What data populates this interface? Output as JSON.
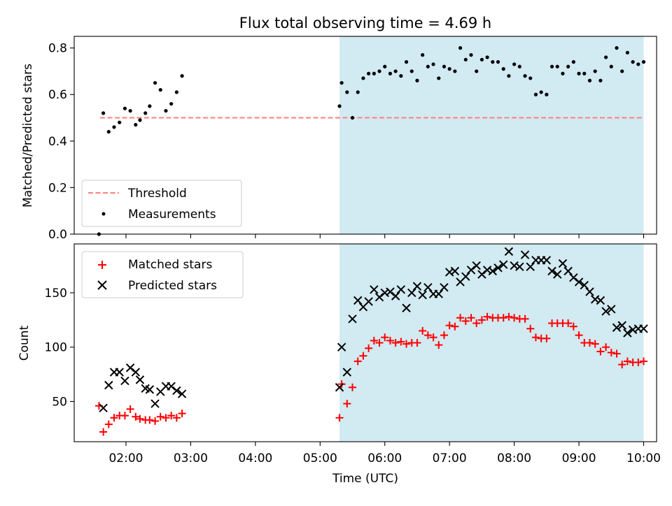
{
  "title": "Flux total observing time = 4.69 h",
  "colors": {
    "shade": "#add8e6",
    "threshold": "#ff7f7f",
    "measurement": "#000000",
    "matched": "#ff0000",
    "predicted": "#000000"
  },
  "chart_data": [
    {
      "type": "scatter",
      "ylabel": "Matched/Predicted stars",
      "ylim": [
        0,
        0.85
      ],
      "yticks": [
        "0.0",
        "0.2",
        "0.4",
        "0.6",
        "0.8"
      ],
      "xlim": [
        "01:12",
        "10:12"
      ],
      "shaded_region": [
        "05:18",
        "10:00"
      ],
      "threshold": {
        "name": "Threshold",
        "value": 0.5,
        "x_range": [
          "01:36",
          "10:00"
        ]
      },
      "legend": {
        "position": "lower-left",
        "entries": [
          "Threshold",
          "Measurements"
        ]
      },
      "series": [
        {
          "name": "Measurements",
          "points": [
            [
              "01:35",
              0.0
            ],
            [
              "01:39",
              0.52
            ],
            [
              "01:44",
              0.44
            ],
            [
              "01:49",
              0.46
            ],
            [
              "01:54",
              0.48
            ],
            [
              "01:59",
              0.54
            ],
            [
              "02:04",
              0.53
            ],
            [
              "02:09",
              0.47
            ],
            [
              "02:13",
              0.49
            ],
            [
              "02:18",
              0.52
            ],
            [
              "02:22",
              0.55
            ],
            [
              "02:27",
              0.65
            ],
            [
              "02:32",
              0.62
            ],
            [
              "02:37",
              0.53
            ],
            [
              "02:42",
              0.56
            ],
            [
              "02:47",
              0.61
            ],
            [
              "02:52",
              0.68
            ],
            [
              "05:18",
              0.55
            ],
            [
              "05:20",
              0.65
            ],
            [
              "05:25",
              0.61
            ],
            [
              "05:30",
              0.5
            ],
            [
              "05:35",
              0.61
            ],
            [
              "05:40",
              0.67
            ],
            [
              "05:45",
              0.69
            ],
            [
              "05:50",
              0.69
            ],
            [
              "05:55",
              0.7
            ],
            [
              "06:00",
              0.72
            ],
            [
              "06:05",
              0.69
            ],
            [
              "06:10",
              0.7
            ],
            [
              "06:15",
              0.68
            ],
            [
              "06:20",
              0.74
            ],
            [
              "06:25",
              0.7
            ],
            [
              "06:30",
              0.66
            ],
            [
              "06:35",
              0.77
            ],
            [
              "06:40",
              0.72
            ],
            [
              "06:45",
              0.73
            ],
            [
              "06:50",
              0.67
            ],
            [
              "06:55",
              0.72
            ],
            [
              "07:00",
              0.71
            ],
            [
              "07:05",
              0.7
            ],
            [
              "07:10",
              0.8
            ],
            [
              "07:15",
              0.75
            ],
            [
              "07:20",
              0.77
            ],
            [
              "07:25",
              0.7
            ],
            [
              "07:30",
              0.75
            ],
            [
              "07:35",
              0.76
            ],
            [
              "07:40",
              0.74
            ],
            [
              "07:45",
              0.74
            ],
            [
              "07:50",
              0.71
            ],
            [
              "07:55",
              0.68
            ],
            [
              "08:00",
              0.73
            ],
            [
              "08:05",
              0.72
            ],
            [
              "08:10",
              0.68
            ],
            [
              "08:15",
              0.67
            ],
            [
              "08:20",
              0.6
            ],
            [
              "08:25",
              0.61
            ],
            [
              "08:30",
              0.6
            ],
            [
              "08:35",
              0.72
            ],
            [
              "08:40",
              0.72
            ],
            [
              "08:45",
              0.69
            ],
            [
              "08:50",
              0.72
            ],
            [
              "08:55",
              0.74
            ],
            [
              "09:00",
              0.69
            ],
            [
              "09:05",
              0.69
            ],
            [
              "09:10",
              0.66
            ],
            [
              "09:15",
              0.7
            ],
            [
              "09:20",
              0.66
            ],
            [
              "09:25",
              0.76
            ],
            [
              "09:30",
              0.72
            ],
            [
              "09:35",
              0.8
            ],
            [
              "09:40",
              0.7
            ],
            [
              "09:45",
              0.78
            ],
            [
              "09:50",
              0.74
            ],
            [
              "09:55",
              0.73
            ],
            [
              "10:00",
              0.74
            ]
          ]
        }
      ]
    },
    {
      "type": "scatter",
      "xlabel": "Time (UTC)",
      "ylabel": "Count",
      "ylim": [
        13,
        195
      ],
      "yticks": [
        "50",
        "100",
        "150"
      ],
      "xticks": [
        "02:00",
        "03:00",
        "04:00",
        "05:00",
        "06:00",
        "07:00",
        "08:00",
        "09:00",
        "10:00"
      ],
      "xlim": [
        "01:12",
        "10:12"
      ],
      "shaded_region": [
        "05:18",
        "10:00"
      ],
      "legend": {
        "position": "upper-left",
        "entries": [
          "Matched stars",
          "Predicted stars"
        ]
      },
      "series": [
        {
          "name": "Matched stars",
          "points": [
            [
              "01:35",
              46
            ],
            [
              "01:39",
              22
            ],
            [
              "01:44",
              29
            ],
            [
              "01:49",
              35
            ],
            [
              "01:54",
              37
            ],
            [
              "01:59",
              37
            ],
            [
              "02:04",
              43
            ],
            [
              "02:09",
              36
            ],
            [
              "02:13",
              34
            ],
            [
              "02:18",
              33
            ],
            [
              "02:22",
              33
            ],
            [
              "02:27",
              32
            ],
            [
              "02:32",
              36
            ],
            [
              "02:37",
              35
            ],
            [
              "02:42",
              37
            ],
            [
              "02:47",
              35
            ],
            [
              "02:52",
              39
            ],
            [
              "05:18",
              35
            ],
            [
              "05:20",
              66
            ],
            [
              "05:25",
              48
            ],
            [
              "05:30",
              63
            ],
            [
              "05:35",
              87
            ],
            [
              "05:40",
              92
            ],
            [
              "05:45",
              99
            ],
            [
              "05:50",
              106
            ],
            [
              "05:55",
              104
            ],
            [
              "06:00",
              109
            ],
            [
              "06:05",
              106
            ],
            [
              "06:10",
              104
            ],
            [
              "06:15",
              105
            ],
            [
              "06:20",
              103
            ],
            [
              "06:25",
              104
            ],
            [
              "06:30",
              104
            ],
            [
              "06:35",
              115
            ],
            [
              "06:40",
              111
            ],
            [
              "06:45",
              109
            ],
            [
              "06:50",
              102
            ],
            [
              "06:55",
              111
            ],
            [
              "07:00",
              120
            ],
            [
              "07:05",
              119
            ],
            [
              "07:10",
              127
            ],
            [
              "07:15",
              124
            ],
            [
              "07:20",
              127
            ],
            [
              "07:25",
              122
            ],
            [
              "07:30",
              125
            ],
            [
              "07:35",
              128
            ],
            [
              "07:40",
              127
            ],
            [
              "07:45",
              127
            ],
            [
              "07:50",
              127
            ],
            [
              "07:55",
              128
            ],
            [
              "08:00",
              127
            ],
            [
              "08:05",
              126
            ],
            [
              "08:10",
              126
            ],
            [
              "08:15",
              117
            ],
            [
              "08:20",
              109
            ],
            [
              "08:25",
              108
            ],
            [
              "08:30",
              108
            ],
            [
              "08:35",
              122
            ],
            [
              "08:40",
              122
            ],
            [
              "08:45",
              122
            ],
            [
              "08:50",
              122
            ],
            [
              "08:55",
              119
            ],
            [
              "09:00",
              111
            ],
            [
              "09:05",
              104
            ],
            [
              "09:10",
              104
            ],
            [
              "09:15",
              103
            ],
            [
              "09:20",
              96
            ],
            [
              "09:25",
              100
            ],
            [
              "09:30",
              95
            ],
            [
              "09:35",
              94
            ],
            [
              "09:40",
              84
            ],
            [
              "09:45",
              87
            ],
            [
              "09:50",
              86
            ],
            [
              "09:55",
              86
            ],
            [
              "10:00",
              87
            ]
          ]
        },
        {
          "name": "Predicted stars",
          "points": [
            [
              "01:39",
              44
            ],
            [
              "01:44",
              65
            ],
            [
              "01:49",
              77
            ],
            [
              "01:54",
              77
            ],
            [
              "01:59",
              69
            ],
            [
              "02:04",
              81
            ],
            [
              "02:09",
              77
            ],
            [
              "02:13",
              70
            ],
            [
              "02:18",
              62
            ],
            [
              "02:22",
              61
            ],
            [
              "02:27",
              48
            ],
            [
              "02:32",
              59
            ],
            [
              "02:37",
              64
            ],
            [
              "02:42",
              64
            ],
            [
              "02:47",
              60
            ],
            [
              "02:52",
              57
            ],
            [
              "05:18",
              63
            ],
            [
              "05:20",
              100
            ],
            [
              "05:25",
              77
            ],
            [
              "05:30",
              126
            ],
            [
              "05:35",
              143
            ],
            [
              "05:40",
              137
            ],
            [
              "05:45",
              142
            ],
            [
              "05:50",
              153
            ],
            [
              "05:55",
              146
            ],
            [
              "06:00",
              150
            ],
            [
              "06:05",
              151
            ],
            [
              "06:10",
              147
            ],
            [
              "06:15",
              153
            ],
            [
              "06:20",
              136
            ],
            [
              "06:25",
              150
            ],
            [
              "06:30",
              156
            ],
            [
              "06:35",
              148
            ],
            [
              "06:40",
              155
            ],
            [
              "06:45",
              149
            ],
            [
              "06:50",
              149
            ],
            [
              "06:55",
              155
            ],
            [
              "07:00",
              169
            ],
            [
              "07:05",
              170
            ],
            [
              "07:10",
              160
            ],
            [
              "07:15",
              165
            ],
            [
              "07:20",
              171
            ],
            [
              "07:25",
              175
            ],
            [
              "07:30",
              167
            ],
            [
              "07:35",
              171
            ],
            [
              "07:40",
              170
            ],
            [
              "07:45",
              173
            ],
            [
              "07:50",
              176
            ],
            [
              "07:55",
              188
            ],
            [
              "08:00",
              175
            ],
            [
              "08:05",
              174
            ],
            [
              "08:10",
              185
            ],
            [
              "08:15",
              174
            ],
            [
              "08:20",
              180
            ],
            [
              "08:25",
              180
            ],
            [
              "08:30",
              180
            ],
            [
              "08:35",
              170
            ],
            [
              "08:40",
              167
            ],
            [
              "08:45",
              177
            ],
            [
              "08:50",
              170
            ],
            [
              "08:55",
              164
            ],
            [
              "09:00",
              160
            ],
            [
              "09:05",
              157
            ],
            [
              "09:10",
              151
            ],
            [
              "09:15",
              144
            ],
            [
              "09:20",
              143
            ],
            [
              "09:25",
              133
            ],
            [
              "09:30",
              135
            ],
            [
              "09:35",
              118
            ],
            [
              "09:40",
              120
            ],
            [
              "09:45",
              113
            ],
            [
              "09:50",
              116
            ],
            [
              "09:55",
              117
            ],
            [
              "10:00",
              117
            ]
          ]
        }
      ]
    }
  ]
}
